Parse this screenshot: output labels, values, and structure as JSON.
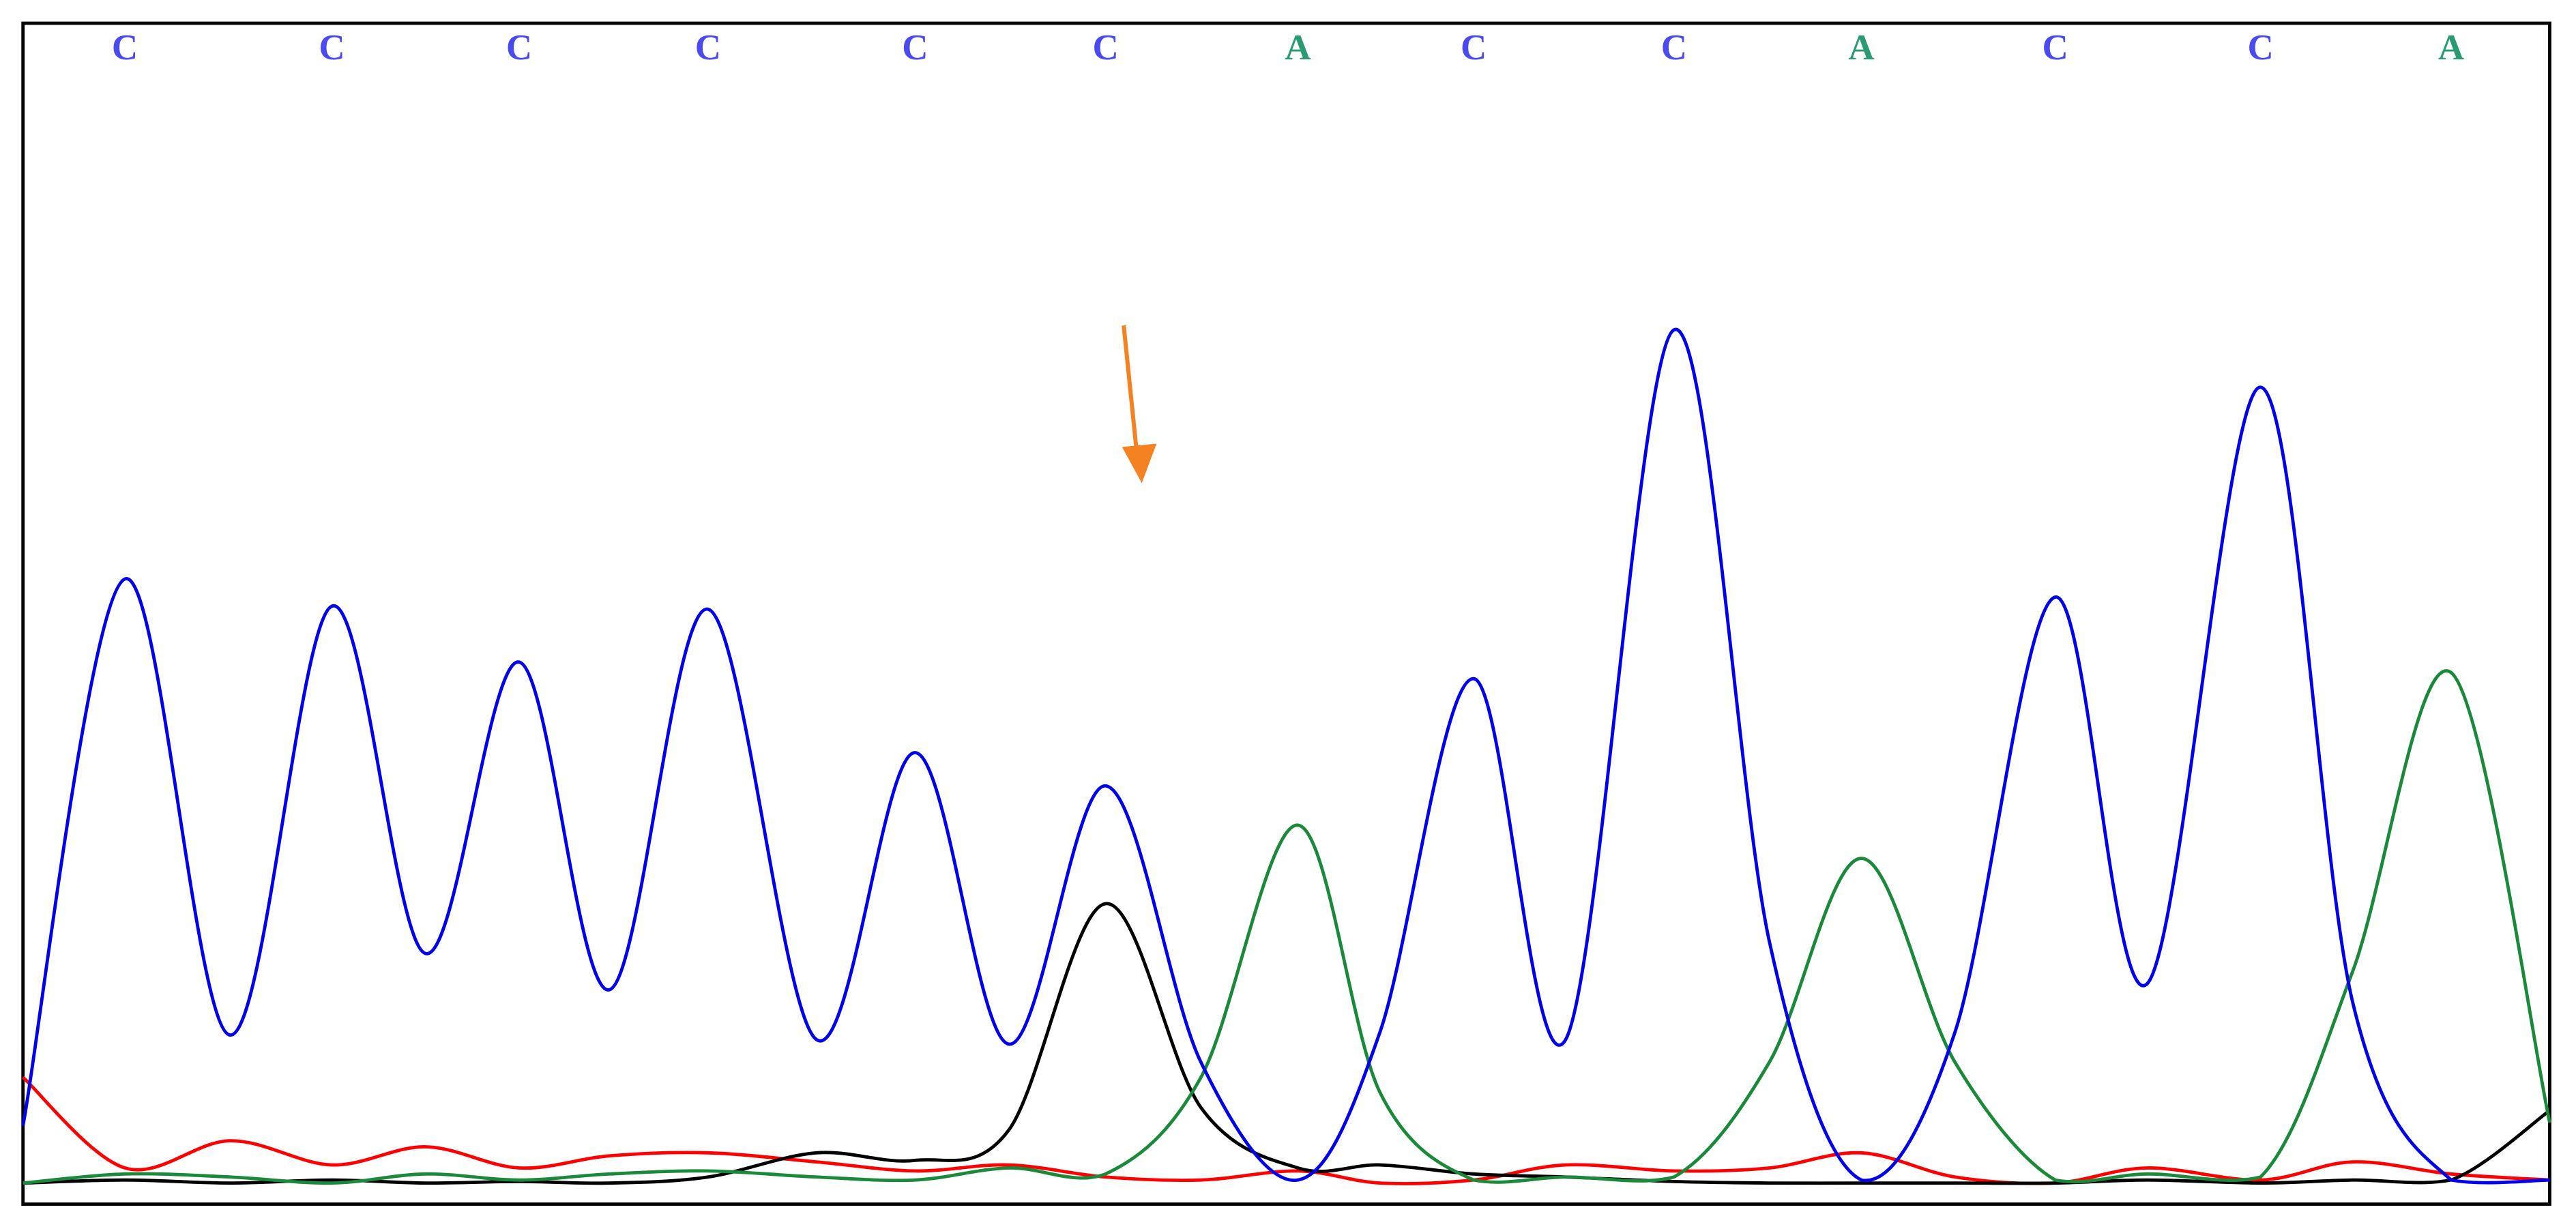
{
  "chart_data": {
    "type": "line",
    "x": [
      14,
      76,
      140,
      202,
      259,
      316,
      371,
      431,
      497,
      557,
      614,
      673,
      731,
      790,
      840,
      897,
      953,
      1019,
      1077,
      1133,
      1190,
      1251,
      1307,
      1376,
      1432,
      1492,
      1552
    ],
    "categories": [
      null,
      "C",
      null,
      "C",
      null,
      "C",
      null,
      "C",
      null,
      "C",
      null,
      "C",
      null,
      "A",
      null,
      "C",
      null,
      "C",
      null,
      "A",
      null,
      "C",
      null,
      "C",
      null,
      "A",
      null
    ],
    "category_colors": {
      "C": "#4a4af0",
      "A": "#2a9a70"
    },
    "xlim": [
      14,
      1552
    ],
    "ylim": [
      0,
      720
    ],
    "series": [
      {
        "color": "#ff0000",
        "values": [
          72,
          12,
          30,
          14,
          26,
          12,
          20,
          22,
          16,
          10,
          14,
          6,
          4,
          10,
          2,
          4,
          14,
          10,
          12,
          22,
          6,
          2,
          12,
          4,
          16,
          8,
          4
        ]
      },
      {
        "color": "#000000",
        "values": [
          2,
          4,
          2,
          4,
          2,
          3,
          2,
          6,
          22,
          17,
          37,
          187,
          52,
          12,
          14,
          8,
          6,
          3,
          2,
          2,
          2,
          2,
          4,
          2,
          4,
          4,
          50
        ]
      },
      {
        "color": "#1a8a3a",
        "values": [
          2,
          8,
          6,
          2,
          8,
          4,
          8,
          10,
          6,
          4,
          12,
          8,
          72,
          239,
          62,
          4,
          6,
          6,
          82,
          217,
          82,
          4,
          8,
          6,
          142,
          340,
          42
        ]
      },
      {
        "color": "#0000ee",
        "values": [
          40,
          402,
          100,
          384,
          154,
          347,
          130,
          382,
          97,
          287,
          94,
          265,
          82,
          4,
          102,
          336,
          97,
          567,
          162,
          4,
          102,
          390,
          134,
          529,
          122,
          4,
          4
        ]
      }
    ]
  }
}
